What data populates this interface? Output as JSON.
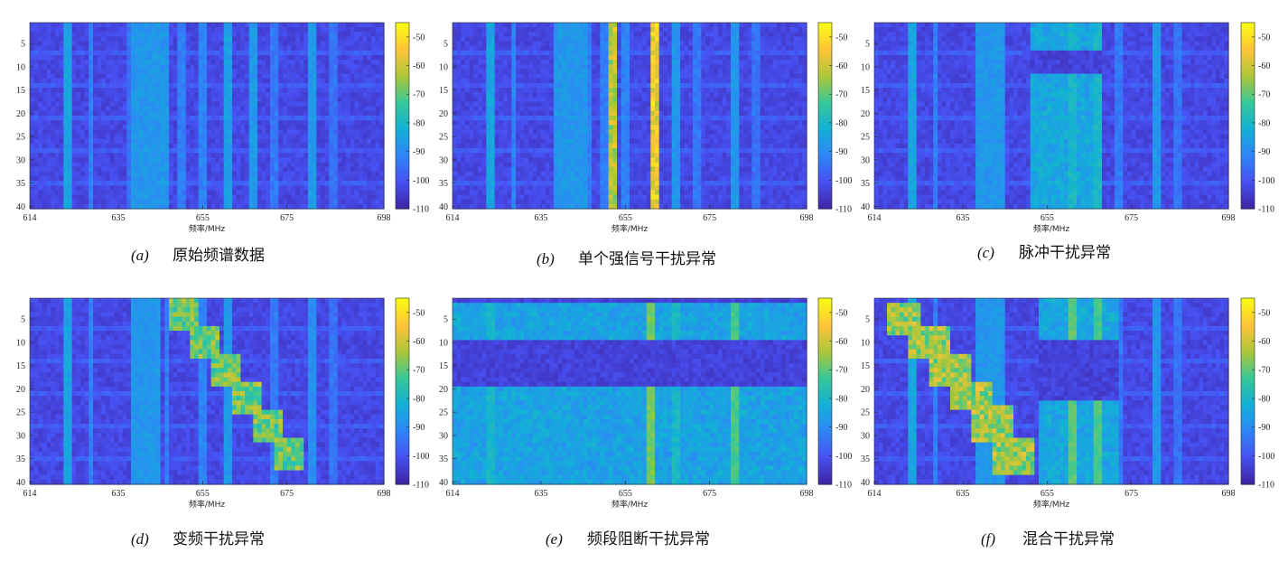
{
  "chart_data": [
    {
      "type": "heatmap",
      "panel_id": "(a)",
      "caption": "原始频谱数据",
      "xlabel": "频率/MHz",
      "xlim": [
        614,
        698
      ],
      "ylim": [
        1,
        40
      ],
      "x_ticks": [
        614,
        635,
        655,
        675,
        698
      ],
      "y_ticks": [
        5,
        10,
        15,
        20,
        25,
        30,
        35,
        40
      ],
      "colorbar": {
        "range": [
          -110,
          -45
        ],
        "ticks": [
          -50,
          -60,
          -70,
          -80,
          -90,
          -100,
          -110
        ],
        "colormap": "parula"
      },
      "background_dbm": -103,
      "channel_lines": [
        {
          "freq": 623,
          "level": -85
        },
        {
          "freq": 628.5,
          "level": -92
        },
        {
          "freq": 637.5,
          "level": -95
        },
        {
          "freq": 639.5,
          "level": -92
        },
        {
          "freq": 646.5,
          "level": -93
        },
        {
          "freq": 650,
          "level": -93
        },
        {
          "freq": 655,
          "level": -92
        },
        {
          "freq": 661,
          "level": -86
        },
        {
          "freq": 667,
          "level": -88
        },
        {
          "freq": 672,
          "level": -94
        },
        {
          "freq": 681,
          "level": -88
        },
        {
          "freq": 686,
          "level": -95
        }
      ],
      "occupied_bands": [
        {
          "from": 638.5,
          "to": 647,
          "level": -88
        }
      ],
      "anomalies": []
    },
    {
      "type": "heatmap",
      "panel_id": "(b)",
      "caption": "单个强信号干扰异常",
      "xlabel": "频率/MHz",
      "xlim": [
        614,
        698
      ],
      "ylim": [
        1,
        40
      ],
      "x_ticks": [
        614,
        635,
        655,
        675,
        698
      ],
      "y_ticks": [
        5,
        10,
        15,
        20,
        25,
        30,
        35,
        40
      ],
      "colorbar": {
        "range": [
          -110,
          -45
        ],
        "ticks": [
          -50,
          -60,
          -70,
          -80,
          -90,
          -100,
          -110
        ],
        "colormap": "parula"
      },
      "background_dbm": -103,
      "channel_lines": [
        {
          "freq": 623,
          "level": -85
        },
        {
          "freq": 628.5,
          "level": -92
        },
        {
          "freq": 646.5,
          "level": -93
        },
        {
          "freq": 650,
          "level": -93
        },
        {
          "freq": 655,
          "level": -92
        },
        {
          "freq": 667,
          "level": -88
        },
        {
          "freq": 672,
          "level": -94
        },
        {
          "freq": 681,
          "level": -88
        },
        {
          "freq": 686,
          "level": -95
        }
      ],
      "occupied_bands": [
        {
          "from": 638,
          "to": 646,
          "level": -88
        }
      ],
      "anomalies": [
        {
          "kind": "strong-line",
          "freq": 652,
          "level": -62
        },
        {
          "kind": "strong-line",
          "freq": 662,
          "level": -55
        }
      ]
    },
    {
      "type": "heatmap",
      "panel_id": "(c)",
      "caption": "脉冲干扰异常",
      "xlabel": "频率/MHz",
      "xlim": [
        614,
        698
      ],
      "ylim": [
        1,
        40
      ],
      "x_ticks": [
        614,
        635,
        655,
        675,
        698
      ],
      "y_ticks": [
        5,
        10,
        15,
        20,
        25,
        30,
        35,
        40
      ],
      "colorbar": {
        "range": [
          -110,
          -45
        ],
        "ticks": [
          -50,
          -60,
          -70,
          -80,
          -90,
          -100,
          -110
        ],
        "colormap": "parula"
      },
      "background_dbm": -103,
      "channel_lines": [
        {
          "freq": 623,
          "level": -85
        },
        {
          "freq": 628.5,
          "level": -92
        },
        {
          "freq": 661,
          "level": -80
        },
        {
          "freq": 667,
          "level": -80
        },
        {
          "freq": 672,
          "level": -94
        },
        {
          "freq": 681,
          "level": -88
        },
        {
          "freq": 686,
          "level": -95
        }
      ],
      "occupied_bands": [
        {
          "from": 638.5,
          "to": 645.5,
          "level": -88
        }
      ],
      "anomalies": [
        {
          "kind": "pulse",
          "freq_from": 651,
          "freq_to": 668,
          "rows_on": [
            [
              1,
              6
            ],
            [
              12,
              40
            ]
          ],
          "level": -85
        }
      ]
    },
    {
      "type": "heatmap",
      "panel_id": "(d)",
      "caption": "变频干扰异常",
      "xlabel": "频率/MHz",
      "xlim": [
        614,
        698
      ],
      "ylim": [
        1,
        40
      ],
      "x_ticks": [
        614,
        635,
        655,
        675,
        698
      ],
      "y_ticks": [
        5,
        10,
        15,
        20,
        25,
        30,
        35,
        40
      ],
      "colorbar": {
        "range": [
          -110,
          -45
        ],
        "ticks": [
          -50,
          -60,
          -70,
          -80,
          -90,
          -100,
          -110
        ],
        "colormap": "parula"
      },
      "background_dbm": -103,
      "channel_lines": [
        {
          "freq": 623,
          "level": -85
        },
        {
          "freq": 628.5,
          "level": -92
        },
        {
          "freq": 646.5,
          "level": -93
        },
        {
          "freq": 655,
          "level": -92
        },
        {
          "freq": 661,
          "level": -88
        },
        {
          "freq": 672,
          "level": -94
        },
        {
          "freq": 681,
          "level": -90
        },
        {
          "freq": 686,
          "level": -95
        }
      ],
      "occupied_bands": [
        {
          "from": 638.5,
          "to": 645.5,
          "level": -88
        }
      ],
      "anomalies": [
        {
          "kind": "hopping",
          "level": -72,
          "blocks": [
            {
              "freq_from": 647,
              "freq_to": 654,
              "row_from": 1,
              "row_to": 7
            },
            {
              "freq_from": 652,
              "freq_to": 659,
              "row_from": 7,
              "row_to": 13
            },
            {
              "freq_from": 657,
              "freq_to": 664,
              "row_from": 13,
              "row_to": 19
            },
            {
              "freq_from": 662,
              "freq_to": 669,
              "row_from": 19,
              "row_to": 25
            },
            {
              "freq_from": 667,
              "freq_to": 674,
              "row_from": 25,
              "row_to": 31
            },
            {
              "freq_from": 672,
              "freq_to": 679,
              "row_from": 31,
              "row_to": 37
            }
          ]
        }
      ]
    },
    {
      "type": "heatmap",
      "panel_id": "(e)",
      "caption": "频段阻断干扰异常",
      "xlabel": "频率/MHz",
      "xlim": [
        614,
        698
      ],
      "ylim": [
        1,
        40
      ],
      "x_ticks": [
        614,
        635,
        655,
        675,
        698
      ],
      "y_ticks": [
        5,
        10,
        15,
        20,
        25,
        30,
        35,
        40
      ],
      "colorbar": {
        "range": [
          -110,
          -45
        ],
        "ticks": [
          -50,
          -60,
          -70,
          -80,
          -90,
          -100,
          -110
        ],
        "colormap": "parula"
      },
      "background_dbm": -103,
      "channel_lines": [
        {
          "freq": 623,
          "level": -80
        },
        {
          "freq": 628.5,
          "level": -88
        },
        {
          "freq": 646.5,
          "level": -88
        },
        {
          "freq": 655,
          "level": -88
        },
        {
          "freq": 661,
          "level": -68
        },
        {
          "freq": 667,
          "level": -80
        },
        {
          "freq": 672,
          "level": -90
        },
        {
          "freq": 681,
          "level": -72
        },
        {
          "freq": 686,
          "level": -92
        }
      ],
      "occupied_bands": [
        {
          "from": 637.5,
          "to": 645.5,
          "level": -88
        }
      ],
      "anomalies": [
        {
          "kind": "band-block",
          "freq_from": 614,
          "freq_to": 698,
          "rows_on": [
            [
              2,
              9
            ],
            [
              20,
              40
            ]
          ],
          "level": -86
        }
      ]
    },
    {
      "type": "heatmap",
      "panel_id": "(f)",
      "caption": "混合干扰异常",
      "xlabel": "频率/MHz",
      "xlim": [
        614,
        698
      ],
      "ylim": [
        1,
        40
      ],
      "x_ticks": [
        614,
        635,
        655,
        675,
        698
      ],
      "y_ticks": [
        5,
        10,
        15,
        20,
        25,
        30,
        35,
        40
      ],
      "colorbar": {
        "range": [
          -110,
          -45
        ],
        "ticks": [
          -50,
          -60,
          -70,
          -80,
          -90,
          -100,
          -110
        ],
        "colormap": "parula"
      },
      "background_dbm": -103,
      "channel_lines": [
        {
          "freq": 623,
          "level": -85
        },
        {
          "freq": 628.5,
          "level": -92
        },
        {
          "freq": 661,
          "level": -70
        },
        {
          "freq": 667,
          "level": -72
        },
        {
          "freq": 672,
          "level": -94
        },
        {
          "freq": 681,
          "level": -88
        },
        {
          "freq": 686,
          "level": -95
        }
      ],
      "occupied_bands": [
        {
          "from": 638.5,
          "to": 645.5,
          "level": -88
        }
      ],
      "anomalies": [
        {
          "kind": "hopping",
          "level": -68,
          "blocks": [
            {
              "freq_from": 617,
              "freq_to": 625,
              "row_from": 2,
              "row_to": 8
            },
            {
              "freq_from": 622,
              "freq_to": 632,
              "row_from": 7,
              "row_to": 13
            },
            {
              "freq_from": 627,
              "freq_to": 637,
              "row_from": 13,
              "row_to": 19
            },
            {
              "freq_from": 632,
              "freq_to": 642,
              "row_from": 19,
              "row_to": 24
            },
            {
              "freq_from": 637,
              "freq_to": 647,
              "row_from": 24,
              "row_to": 31
            },
            {
              "freq_from": 642,
              "freq_to": 652,
              "row_from": 31,
              "row_to": 38
            }
          ]
        },
        {
          "kind": "pulse",
          "freq_from": 653,
          "freq_to": 672,
          "rows_on": [
            [
              1,
              9
            ],
            [
              23,
              40
            ]
          ],
          "level": -85
        }
      ]
    }
  ]
}
